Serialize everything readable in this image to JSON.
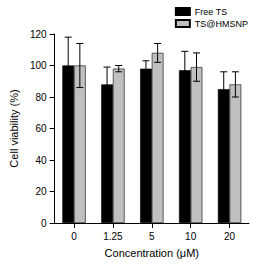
{
  "chart_data": {
    "type": "bar",
    "x_label": "Concentration (μM)",
    "y_label": "Cell viability (%)",
    "categories": [
      "0",
      "1.25",
      "5",
      "10",
      "20"
    ],
    "series": [
      {
        "name": "Free TS",
        "color": "#000000",
        "values": [
          100,
          88,
          98,
          97,
          85
        ],
        "errors": [
          18,
          11,
          5,
          12,
          11
        ]
      },
      {
        "name": "TS@HMSNP",
        "color": "#c0c0c0",
        "values": [
          100,
          98,
          108,
          99,
          88
        ],
        "errors": [
          14,
          2,
          6,
          9,
          8
        ]
      }
    ],
    "ylim": [
      0,
      120
    ],
    "yticks": [
      0,
      20,
      40,
      60,
      80,
      100,
      120
    ],
    "grid": false,
    "legend": "upper right"
  }
}
